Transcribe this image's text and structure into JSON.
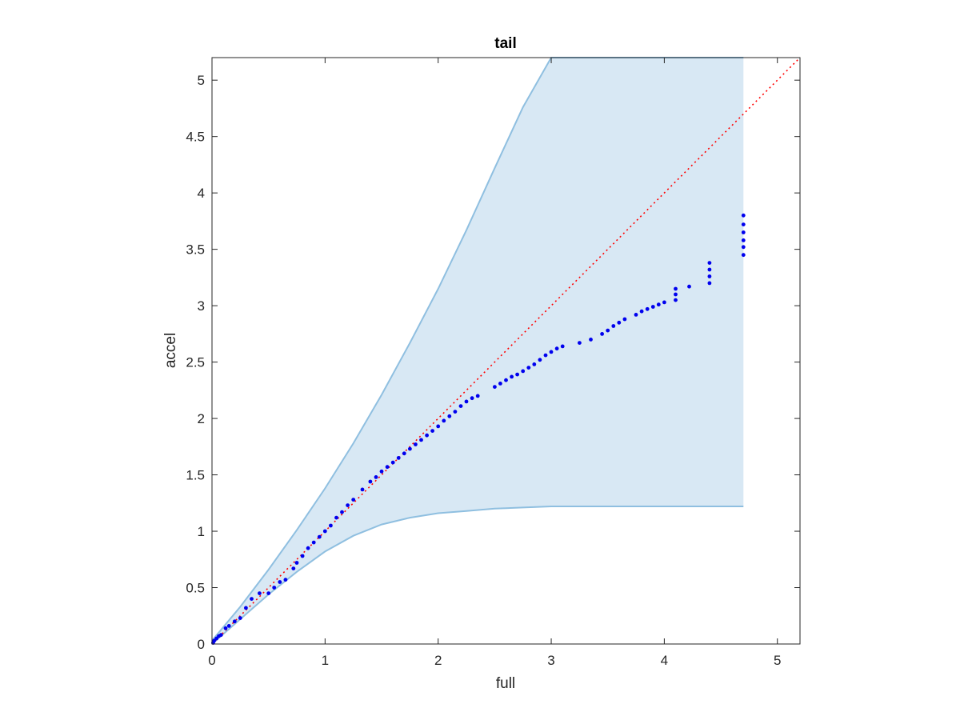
{
  "chart_data": {
    "type": "scatter",
    "title": "tail",
    "xlabel": "full",
    "ylabel": "accel",
    "xlim": [
      0,
      5.2
    ],
    "ylim": [
      0,
      5.2
    ],
    "xticks": [
      0,
      1,
      2,
      3,
      4,
      5
    ],
    "yticks": [
      0,
      0.5,
      1,
      1.5,
      2,
      2.5,
      3,
      3.5,
      4,
      4.5,
      5
    ],
    "xtick_labels": [
      "0",
      "1",
      "2",
      "3",
      "4",
      "5"
    ],
    "ytick_labels": [
      "0",
      "0.5",
      "1",
      "1.5",
      "2",
      "2.5",
      "3",
      "3.5",
      "4",
      "4.5",
      "5"
    ],
    "grid": false,
    "legend": "none",
    "colors": {
      "points": "#0000ee",
      "reference_line": "#ff0000",
      "band_fill": "#d8e8f4",
      "band_edge": "#8fbfe0",
      "axes": "#262626"
    },
    "reference_line": {
      "style": "dotted",
      "x": [
        0,
        5.2
      ],
      "y": [
        0,
        5.2
      ]
    },
    "band": {
      "x": [
        0,
        0.25,
        0.5,
        0.75,
        1,
        1.25,
        1.5,
        1.75,
        2,
        2.25,
        2.5,
        2.75,
        3,
        3.2,
        3.5,
        4,
        4.5,
        4.7
      ],
      "upper": [
        0.03,
        0.33,
        0.66,
        1.01,
        1.38,
        1.78,
        2.21,
        2.67,
        3.15,
        3.67,
        4.22,
        4.76,
        5.2,
        5.2,
        5.2,
        5.2,
        5.2,
        5.2
      ],
      "lower": [
        0,
        0.22,
        0.44,
        0.64,
        0.82,
        0.96,
        1.06,
        1.12,
        1.16,
        1.18,
        1.2,
        1.21,
        1.22,
        1.22,
        1.22,
        1.22,
        1.22,
        1.22
      ]
    },
    "series": [
      {
        "points": [
          [
            0.01,
            0.01
          ],
          [
            0.02,
            0.03
          ],
          [
            0.04,
            0.05
          ],
          [
            0.06,
            0.07
          ],
          [
            0.08,
            0.08
          ],
          [
            0.12,
            0.14
          ],
          [
            0.15,
            0.16
          ],
          [
            0.2,
            0.2
          ],
          [
            0.25,
            0.23
          ],
          [
            0.3,
            0.32
          ],
          [
            0.35,
            0.4
          ],
          [
            0.42,
            0.45
          ],
          [
            0.5,
            0.45
          ],
          [
            0.55,
            0.5
          ],
          [
            0.6,
            0.55
          ],
          [
            0.65,
            0.57
          ],
          [
            0.72,
            0.67
          ],
          [
            0.75,
            0.72
          ],
          [
            0.8,
            0.78
          ],
          [
            0.85,
            0.85
          ],
          [
            0.9,
            0.9
          ],
          [
            0.95,
            0.95
          ],
          [
            1.0,
            1.0
          ],
          [
            1.05,
            1.05
          ],
          [
            1.1,
            1.12
          ],
          [
            1.15,
            1.17
          ],
          [
            1.2,
            1.23
          ],
          [
            1.25,
            1.28
          ],
          [
            1.33,
            1.37
          ],
          [
            1.4,
            1.44
          ],
          [
            1.45,
            1.48
          ],
          [
            1.5,
            1.53
          ],
          [
            1.55,
            1.57
          ],
          [
            1.6,
            1.61
          ],
          [
            1.65,
            1.65
          ],
          [
            1.7,
            1.69
          ],
          [
            1.75,
            1.73
          ],
          [
            1.8,
            1.77
          ],
          [
            1.85,
            1.81
          ],
          [
            1.9,
            1.85
          ],
          [
            1.95,
            1.89
          ],
          [
            2.0,
            1.93
          ],
          [
            2.05,
            1.98
          ],
          [
            2.1,
            2.02
          ],
          [
            2.15,
            2.06
          ],
          [
            2.2,
            2.11
          ],
          [
            2.25,
            2.15
          ],
          [
            2.3,
            2.18
          ],
          [
            2.35,
            2.2
          ],
          [
            2.5,
            2.28
          ],
          [
            2.55,
            2.31
          ],
          [
            2.6,
            2.34
          ],
          [
            2.65,
            2.37
          ],
          [
            2.7,
            2.39
          ],
          [
            2.75,
            2.42
          ],
          [
            2.8,
            2.45
          ],
          [
            2.85,
            2.48
          ],
          [
            2.9,
            2.52
          ],
          [
            2.95,
            2.56
          ],
          [
            3.0,
            2.59
          ],
          [
            3.05,
            2.62
          ],
          [
            3.1,
            2.64
          ],
          [
            3.25,
            2.67
          ],
          [
            3.35,
            2.7
          ],
          [
            3.45,
            2.75
          ],
          [
            3.5,
            2.78
          ],
          [
            3.55,
            2.82
          ],
          [
            3.6,
            2.85
          ],
          [
            3.65,
            2.88
          ],
          [
            3.75,
            2.92
          ],
          [
            3.8,
            2.95
          ],
          [
            3.85,
            2.97
          ],
          [
            3.9,
            2.99
          ],
          [
            3.95,
            3.01
          ],
          [
            4.0,
            3.03
          ],
          [
            4.1,
            3.05
          ],
          [
            4.1,
            3.1
          ],
          [
            4.1,
            3.15
          ],
          [
            4.22,
            3.17
          ],
          [
            4.4,
            3.2
          ],
          [
            4.4,
            3.26
          ],
          [
            4.4,
            3.32
          ],
          [
            4.4,
            3.38
          ],
          [
            4.7,
            3.45
          ],
          [
            4.7,
            3.52
          ],
          [
            4.7,
            3.58
          ],
          [
            4.7,
            3.65
          ],
          [
            4.7,
            3.72
          ],
          [
            4.7,
            3.8
          ]
        ]
      }
    ]
  }
}
